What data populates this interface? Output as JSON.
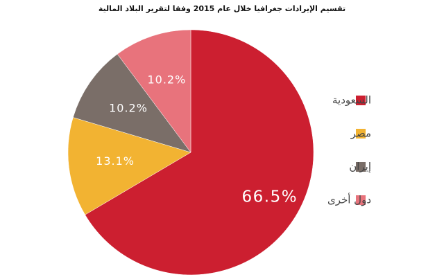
{
  "chart_data": {
    "type": "pie",
    "title": "تقسيم الإيرادات جغرافيا خلال عام 2015 وفقا لتقرير البلاد المالية",
    "slices": [
      {
        "label": "السعودية",
        "value": 66.5,
        "value_label": "66.5%",
        "color": "#cc1f30"
      },
      {
        "label": "مصر",
        "value": 13.1,
        "value_label": "13.1%",
        "color": "#f2b332"
      },
      {
        "label": "إيران",
        "value": 10.2,
        "value_label": "10.2%",
        "color": "#7a6e68"
      },
      {
        "label": "دول أخرى",
        "value": 10.2,
        "value_label": "10.2%",
        "color": "#e8737c"
      }
    ],
    "legend_position": "right"
  }
}
